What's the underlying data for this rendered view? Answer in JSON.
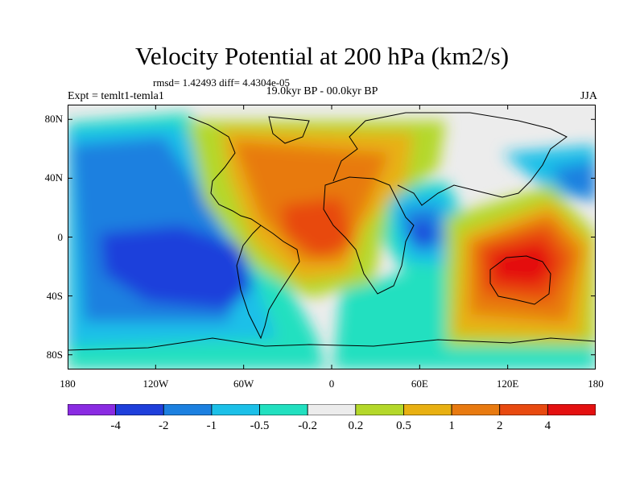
{
  "title": "Velocity Potential at 200 hPa (km2/s)",
  "stats": "rmsd= 1.42493 diff= 4.4304e-05",
  "left_string": "Expt = temlt1-temla1",
  "center_string": "19.0kyr BP - 00.0kyr BP",
  "right_string": "JJA",
  "chart_data": {
    "type": "heatmap",
    "title": "Velocity Potential at 200 hPa (km2/s)",
    "projection": "cylindrical equidistant",
    "xlim": [
      -180,
      180
    ],
    "ylim": [
      -90,
      90
    ],
    "x_ticks": [
      {
        "value": -180,
        "label": "180"
      },
      {
        "value": -120,
        "label": "120W"
      },
      {
        "value": -60,
        "label": "60W"
      },
      {
        "value": 0,
        "label": "0"
      },
      {
        "value": 60,
        "label": "60E"
      },
      {
        "value": 120,
        "label": "120E"
      },
      {
        "value": 180,
        "label": "180"
      }
    ],
    "y_ticks": [
      {
        "value": 80,
        "label": "80N"
      },
      {
        "value": 40,
        "label": "40N"
      },
      {
        "value": 0,
        "label": "0"
      },
      {
        "value": -40,
        "label": "40S"
      },
      {
        "value": -80,
        "label": "80S"
      }
    ],
    "contour_levels": [
      "-4",
      "-2",
      "-1",
      "-0.5",
      "-0.2",
      "0.2",
      "0.5",
      "1",
      "2",
      "4"
    ],
    "colors": [
      "#8a2be2",
      "#1f3fdb",
      "#1c80e0",
      "#1cc0e8",
      "#22e0c0",
      "#ececec",
      "#b4d82a",
      "#e8b012",
      "#e87a10",
      "#e84a10",
      "#e41010"
    ],
    "features": [
      {
        "name": "negative center, central Pacific",
        "lon": -130,
        "lat": -20,
        "value": -3
      },
      {
        "name": "negative center, tropical Indian Ocean",
        "lon": 58,
        "lat": 2,
        "value": -2.5
      },
      {
        "name": "positive center, tropical Atlantic",
        "lon": -25,
        "lat": 10,
        "value": 2.5
      },
      {
        "name": "positive center, Maritime Continent",
        "lon": 130,
        "lat": -20,
        "value": 3.5
      }
    ]
  }
}
